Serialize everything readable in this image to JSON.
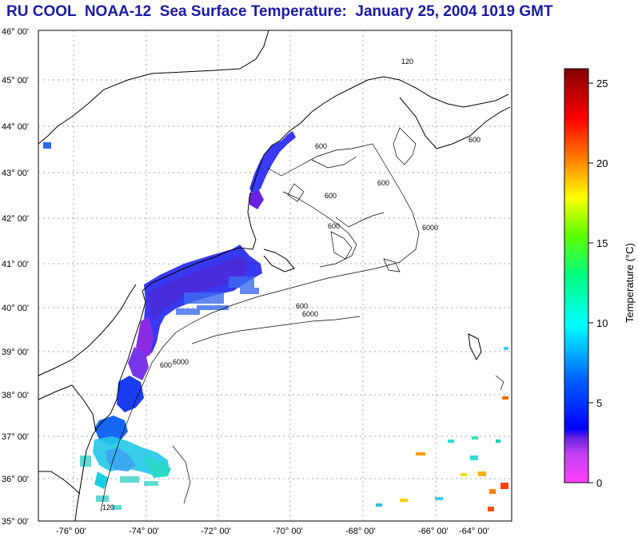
{
  "title": "RU COOL  NOAA-12  Sea Surface Temperature:  January 25, 2004 1019 GMT",
  "map": {
    "lat_labels": [
      "46° 00'",
      "45° 00'",
      "44° 00'",
      "43° 00'",
      "42° 00'",
      "41° 00'",
      "40° 00'",
      "39° 00'",
      "38° 00'",
      "37° 00'",
      "36° 00'",
      "35° 00'"
    ],
    "lon_labels": [
      "-76° 00'",
      "-74° 00'",
      "-72° 00'",
      "-70° 00'",
      "-68° 00'",
      "-66° 00'",
      "-64° 00'"
    ],
    "contour_labels": [
      "120",
      "600",
      "600",
      "600",
      "600",
      "6000",
      "600",
      "6000",
      "600",
      "6000",
      "120",
      "600"
    ],
    "grid": "dotted"
  },
  "colorbar": {
    "title": "Temperature (°C)",
    "ticks": [
      "0",
      "5",
      "10",
      "15",
      "20",
      "25"
    ],
    "min": 0,
    "max": 26,
    "colors": {
      "magenta": "#ff40ff",
      "purple": "#8a2be2",
      "blue": "#0000ff",
      "cyan": "#00ffff",
      "green": "#00ff00",
      "yellow": "#ffff00",
      "orange": "#ff8000",
      "red": "#ff0000",
      "darkred": "#800000"
    }
  },
  "colors": {
    "title": "#1a1aa6",
    "coast": "#000000"
  }
}
